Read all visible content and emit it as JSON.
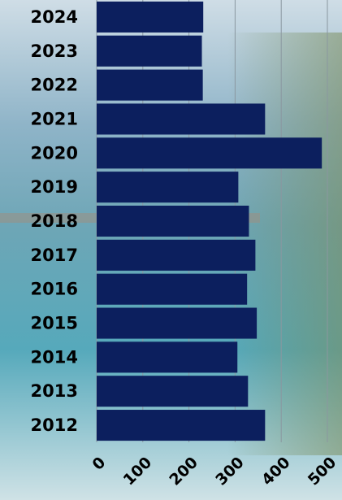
{
  "chart_data": {
    "type": "bar",
    "orientation": "horizontal",
    "categories": [
      "2024",
      "2023",
      "2022",
      "2021",
      "2020",
      "2019",
      "2018",
      "2017",
      "2016",
      "2015",
      "2014",
      "2013",
      "2012"
    ],
    "values": [
      231,
      228,
      230,
      365,
      488,
      307,
      330,
      344,
      326,
      347,
      305,
      328,
      365
    ],
    "color": "#0c1f5e",
    "xlim": [
      0,
      500
    ],
    "xticks": [
      0,
      100,
      200,
      300,
      400,
      500
    ],
    "grid": true
  }
}
